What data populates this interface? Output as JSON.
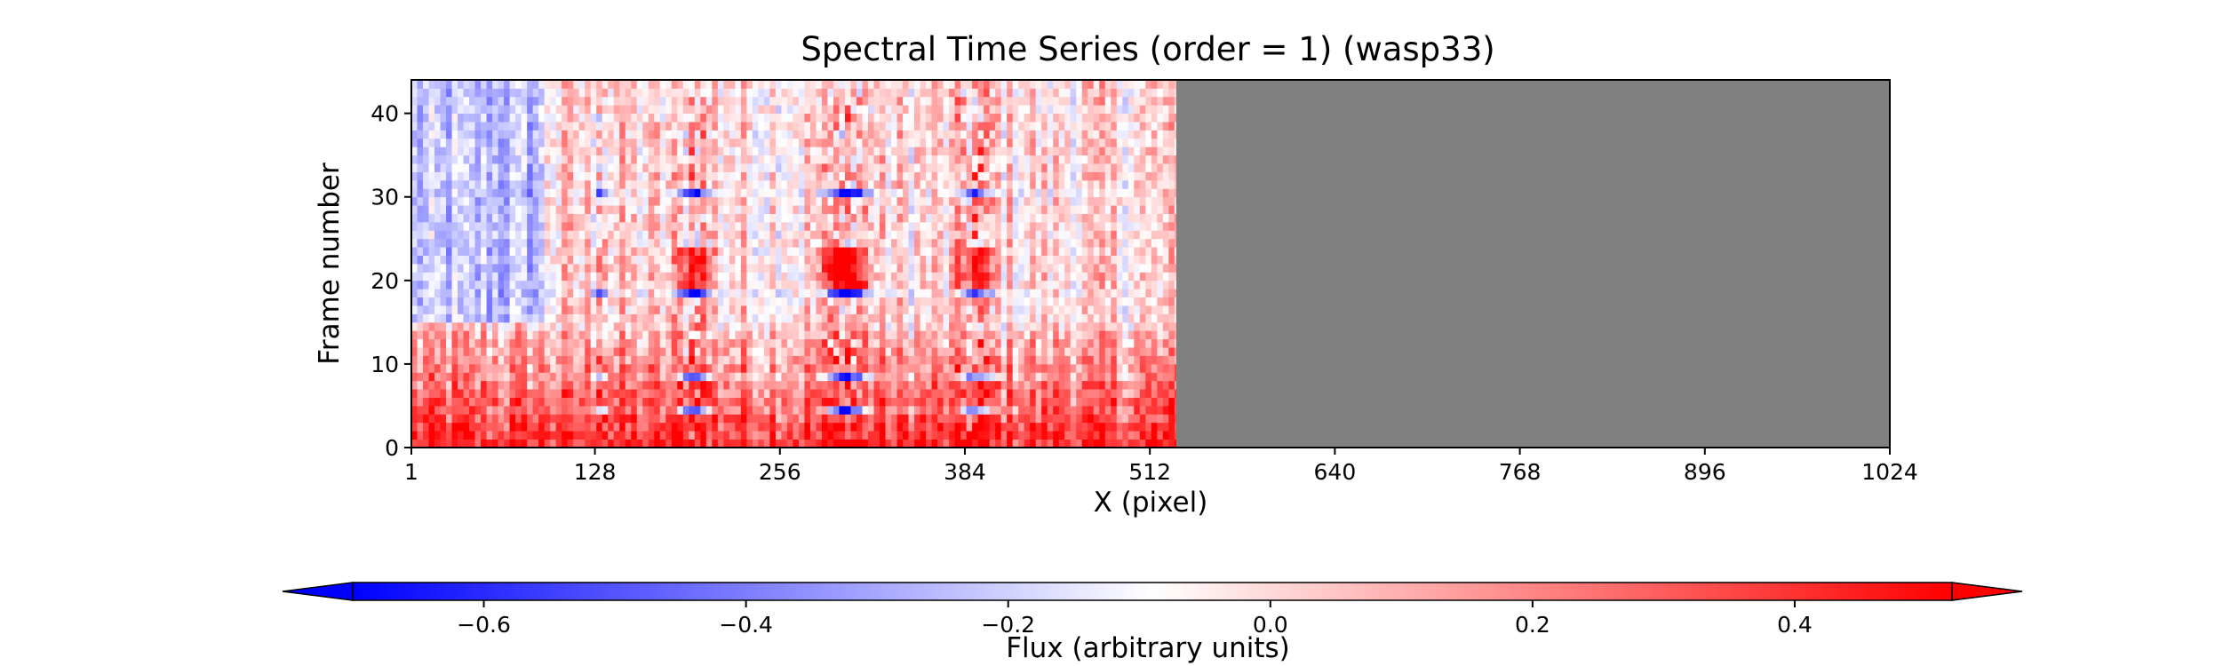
{
  "chart_data": {
    "type": "heatmap",
    "title": "Spectral Time Series (order = 1) (wasp33)",
    "xlabel": "X (pixel)",
    "ylabel": "Frame number",
    "xlim": [
      1,
      1024
    ],
    "ylim": [
      0,
      44
    ],
    "x_ticks": [
      1,
      128,
      256,
      384,
      512,
      640,
      768,
      896,
      1024
    ],
    "y_ticks": [
      0,
      10,
      20,
      30,
      40
    ],
    "n_frames": 44,
    "data_x_range": [
      1,
      530
    ],
    "masked_color": "#808080",
    "colormap": "bwr",
    "color_low": "#0000ff",
    "color_mid": "#ffffff",
    "color_high": "#ff0000",
    "vmin": -0.7,
    "vmax": 0.52,
    "colorbar": {
      "label": "Flux (arbitrary units)",
      "ticks": [
        -0.6,
        -0.4,
        -0.2,
        0.0,
        0.2,
        0.4
      ],
      "tick_labels": [
        "−0.6",
        "−0.4",
        "−0.2",
        "0.0",
        "0.2",
        "0.4"
      ],
      "extend": "both",
      "orientation": "horizontal"
    },
    "features": {
      "absorption_columns": [
        {
          "x": 195,
          "width": 18,
          "amplitude": -0.55
        },
        {
          "x": 300,
          "width": 22,
          "amplitude": -0.7
        },
        {
          "x": 390,
          "width": 18,
          "amplitude": -0.45
        },
        {
          "x": 130,
          "width": 6,
          "amplitude": -0.35
        }
      ],
      "blue_frames": [
        4,
        8,
        18,
        30
      ],
      "red_frames": [
        19,
        20,
        21,
        22,
        23
      ],
      "low_frame_offset": 0.3,
      "high_frame_offset": -0.05
    }
  }
}
